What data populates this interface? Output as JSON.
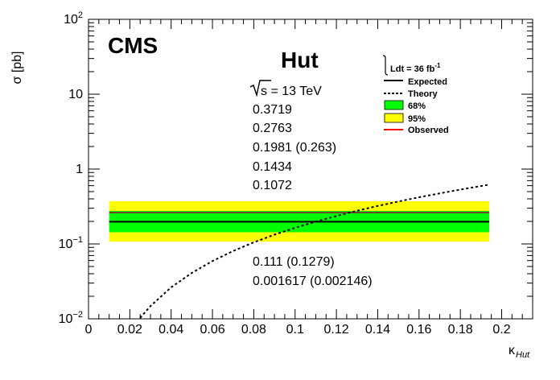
{
  "chart_data": {
    "type": "line",
    "title": "Hut",
    "experiment": "CMS",
    "xlabel": "κ",
    "xlabel_sub": "Hut",
    "ylabel": "σ [pb]",
    "xlim": [
      0,
      0.215
    ],
    "ylim": [
      0.01,
      100
    ],
    "y_scale": "log",
    "grid": false,
    "x_ticks": [
      "0",
      "0.02",
      "0.04",
      "0.06",
      "0.08",
      "0.1",
      "0.12",
      "0.14",
      "0.16",
      "0.18",
      "0.2"
    ],
    "y_ticks": [
      {
        "base": "10",
        "exp": "−2",
        "value": 0.01
      },
      {
        "base": "10",
        "exp": "−1",
        "value": 0.1
      },
      {
        "base": "1",
        "exp": "",
        "value": 1
      },
      {
        "base": "10",
        "exp": "",
        "value": 10
      },
      {
        "base": "10",
        "exp": "2",
        "value": 100
      }
    ],
    "annotations": {
      "sqrt_s": "s = 13 TeV",
      "values": [
        "0.3719",
        "0.2763",
        "0.1981 (0.263)",
        "0.1434",
        "0.1072",
        "0.111 (0.1279)",
        "0.001617 (0.002146)"
      ]
    },
    "legend": {
      "position": "top-right",
      "lumi_prefix": "Ldt = 36 fb",
      "lumi_exp": "-1",
      "entries": [
        "Expected",
        "Theory",
        "68%",
        "95%",
        "Observed"
      ]
    },
    "x_range": [
      0.01,
      0.194
    ],
    "expected": 0.1981,
    "observed": 0.263,
    "band_68": [
      0.1434,
      0.2763
    ],
    "band_95": [
      0.1072,
      0.3719
    ],
    "theory": {
      "x": [
        0.025,
        0.03,
        0.04,
        0.05,
        0.06,
        0.07,
        0.08,
        0.09,
        0.1,
        0.11,
        0.12,
        0.13,
        0.14,
        0.15,
        0.16,
        0.17,
        0.18,
        0.194
      ],
      "y": [
        0.0103,
        0.0148,
        0.0263,
        0.041,
        0.059,
        0.0805,
        0.105,
        0.133,
        0.164,
        0.199,
        0.236,
        0.277,
        0.322,
        0.369,
        0.42,
        0.474,
        0.532,
        0.62
      ]
    },
    "colors": {
      "band_68": "#00ff00",
      "band_95": "#ffff00",
      "observed": "#ff0000",
      "expected": "#000000",
      "theory": "#000000"
    }
  }
}
